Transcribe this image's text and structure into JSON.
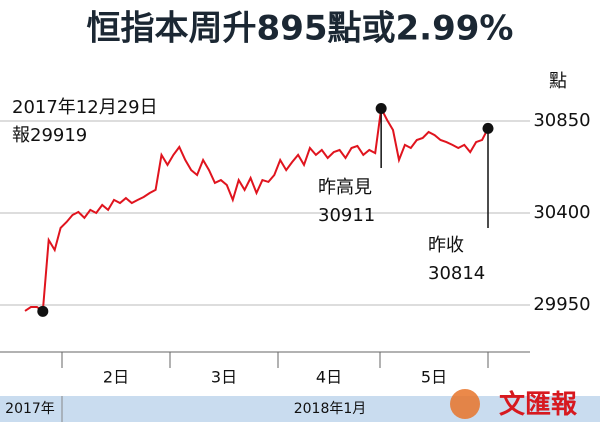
{
  "chart_data": {
    "type": "line",
    "title": "恒指本周升895點或2.99%",
    "y_unit": "點",
    "series": [
      {
        "name": "恒指",
        "color": "#e0141e",
        "values": [
          29921,
          29940,
          29940,
          29919,
          30268,
          30219,
          30327,
          30356,
          30390,
          30405,
          30376,
          30415,
          30400,
          30439,
          30415,
          30464,
          30449,
          30473,
          30449,
          30464,
          30478,
          30498,
          30513,
          30684,
          30635,
          30684,
          30723,
          30659,
          30610,
          30586,
          30659,
          30610,
          30547,
          30561,
          30537,
          30464,
          30561,
          30513,
          30571,
          30498,
          30561,
          30552,
          30586,
          30659,
          30610,
          30649,
          30684,
          30635,
          30718,
          30684,
          30708,
          30669,
          30698,
          30708,
          30669,
          30718,
          30728,
          30684,
          30708,
          30693,
          30911,
          30855,
          30806,
          30659,
          30733,
          30718,
          30757,
          30767,
          30796,
          30781,
          30757,
          30747,
          30733,
          30718,
          30733,
          30698,
          30747,
          30757,
          30814
        ]
      }
    ],
    "ylim": [
      29720,
      31075
    ],
    "yticks": [
      29950,
      30400,
      30850
    ],
    "grid": true,
    "day_labels": [
      "2日",
      "3日",
      "4日",
      "5日"
    ],
    "period_labels": [
      "2017年",
      "2018年1月"
    ],
    "annotations": [
      {
        "index": 3,
        "lines": [
          "2017年12月29日",
          "報29919"
        ]
      },
      {
        "index": 60,
        "lines": [
          "昨高見",
          "30911"
        ]
      },
      {
        "index": 78,
        "lines": [
          "昨收",
          "30814"
        ]
      }
    ],
    "logo": "文匯報"
  }
}
